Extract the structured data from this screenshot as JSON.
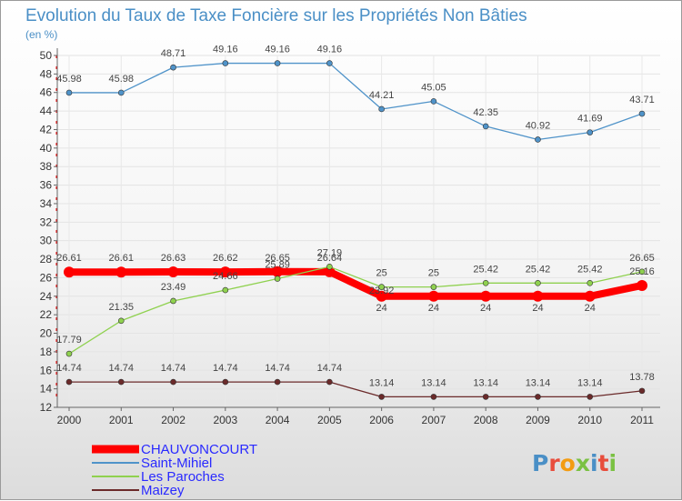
{
  "chart_data": {
    "type": "line",
    "title": "Evolution du Taux de Taxe Foncière sur les Propriétés Non Bâties",
    "subtitle": "(en %)",
    "xlabel": "",
    "ylabel": "",
    "ylim": [
      12,
      50
    ],
    "y_ticks": [
      12,
      14,
      16,
      18,
      20,
      22,
      24,
      26,
      28,
      30,
      32,
      34,
      36,
      38,
      40,
      42,
      44,
      46,
      48,
      50
    ],
    "categories": [
      "2000",
      "2001",
      "2002",
      "2003",
      "2004",
      "2005",
      "2006",
      "2007",
      "2008",
      "2009",
      "2010",
      "2011"
    ],
    "series": [
      {
        "name": "CHAUVONCOURT",
        "color": "#ff0000",
        "values": [
          26.61,
          26.61,
          26.63,
          26.62,
          26.65,
          26.64,
          24,
          24,
          24,
          24,
          24,
          25.16
        ],
        "labels": [
          "26.61",
          "26.61",
          "26.63",
          "26.62",
          "26.65",
          "26.64",
          "24",
          "24",
          "24",
          "24",
          "24",
          "25.16"
        ]
      },
      {
        "name": "Saint-Mihiel",
        "color": "#4f93c9",
        "values": [
          45.98,
          45.98,
          48.71,
          49.16,
          49.16,
          49.16,
          44.21,
          45.05,
          42.35,
          40.92,
          41.69,
          43.71
        ],
        "labels": [
          "45.98",
          "45.98",
          "48.71",
          "49.16",
          "49.16",
          "49.16",
          "44.21",
          "45.05",
          "42.35",
          "40.92",
          "41.69",
          "43.71"
        ]
      },
      {
        "name": "Les Paroches",
        "color": "#8fd14f",
        "values": [
          17.79,
          21.35,
          23.49,
          24.66,
          25.89,
          27.19,
          25,
          25,
          25.42,
          25.42,
          25.42,
          26.65
        ],
        "labels": [
          "17.79",
          "21.35",
          "23.49",
          "24.66",
          "25.89",
          "27.19",
          "25",
          "25",
          "25.42",
          "25.42",
          "25.42",
          "26.65"
        ]
      },
      {
        "name": "Maizey",
        "color": "#6b2a2a",
        "values": [
          14.74,
          14.74,
          14.74,
          14.74,
          14.74,
          14.74,
          13.14,
          13.14,
          13.14,
          13.14,
          13.14,
          13.78
        ],
        "labels": [
          "14.74",
          "14.74",
          "14.74",
          "14.74",
          "14.74",
          "14.74",
          "13.14",
          "13.14",
          "13.14",
          "13.14",
          "13.14",
          "13.78"
        ]
      }
    ],
    "extra_labels": [
      "23.92"
    ],
    "grid": true,
    "legend_position": "bottom-left"
  },
  "branding": {
    "logo_text": "Proxiti",
    "letter_colors": [
      "#4a8fc6",
      "#e84d3c",
      "#f39c12",
      "#7ac143",
      "#4a8fc6",
      "#e84d3c",
      "#7ac143"
    ]
  }
}
